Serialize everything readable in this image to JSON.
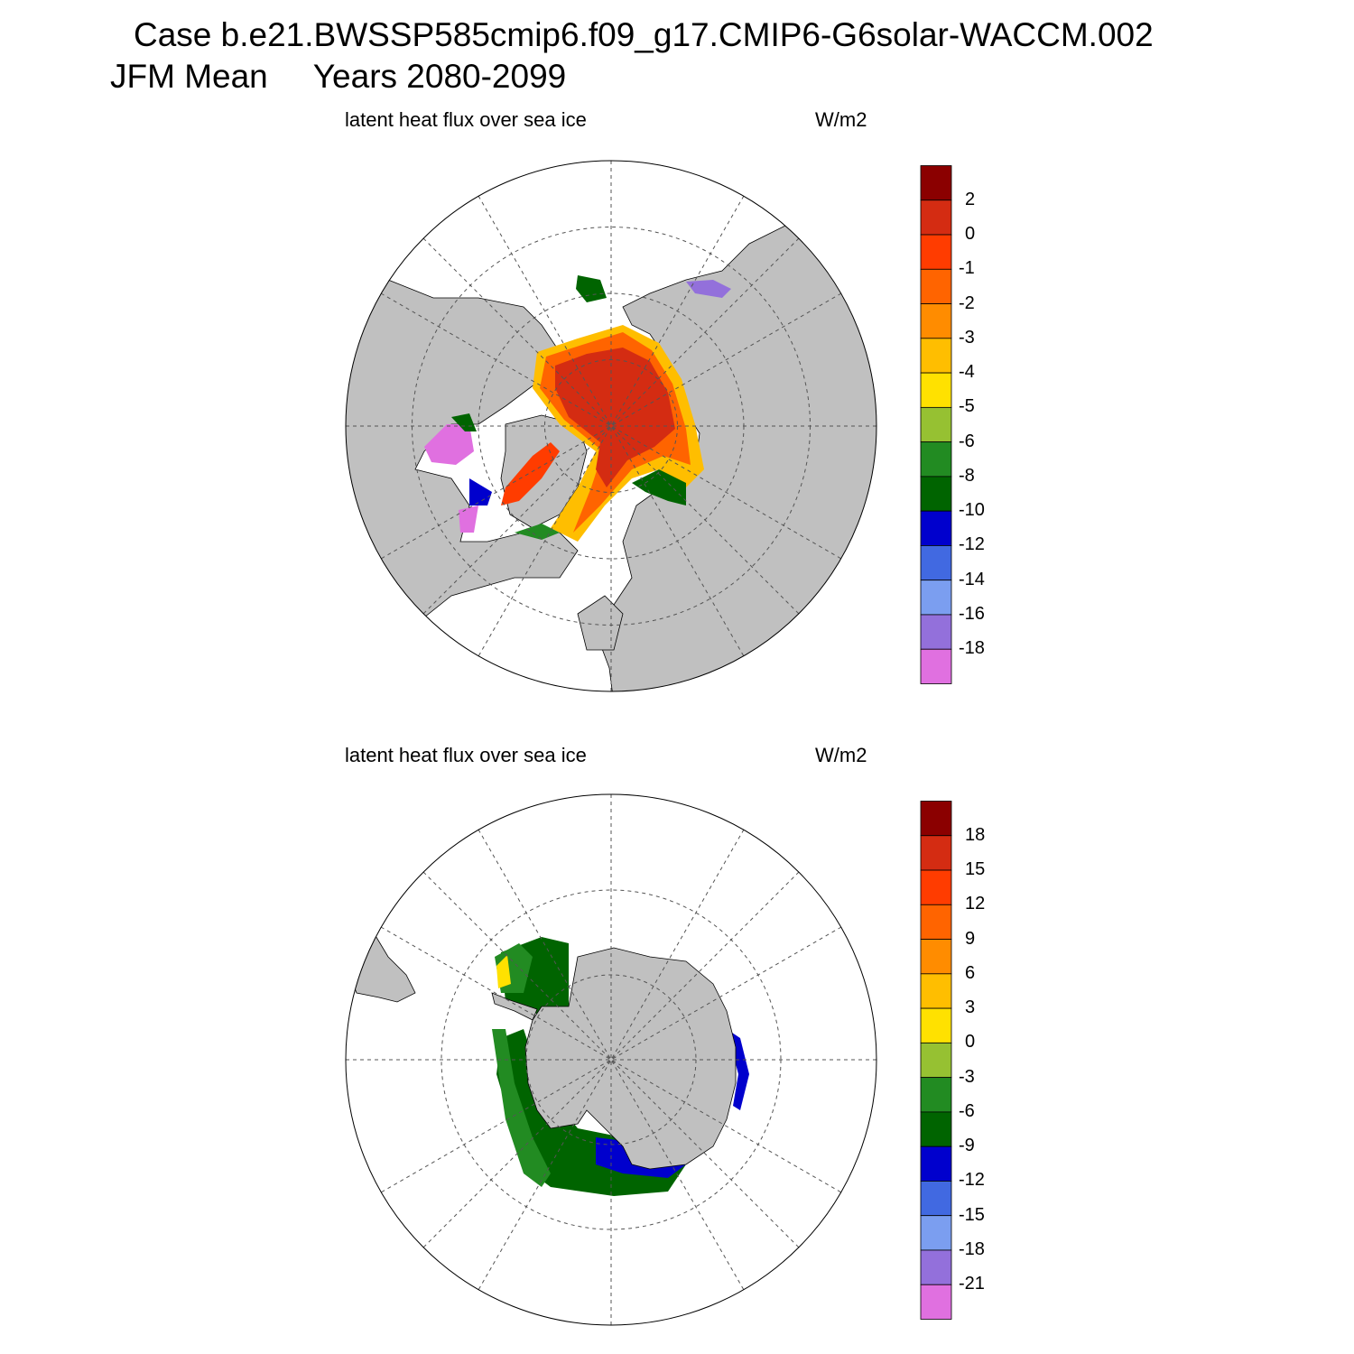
{
  "header": {
    "case_title": "Case b.e21.BWSSP585cmip6.f09_g17.CMIP6-G6solar-WACCM.002",
    "season": "JFM Mean",
    "years": "Years 2080-2099"
  },
  "panels": [
    {
      "hemisphere": "north",
      "title": "latent heat flux over sea ice",
      "units": "W/m2",
      "colorbar": {
        "colors": [
          "#8b0000",
          "#d42c12",
          "#ff3c00",
          "#ff6400",
          "#ff8c00",
          "#ffbe00",
          "#ffe100",
          "#96c132",
          "#228b22",
          "#006400",
          "#0000cd",
          "#4169e1",
          "#7b9ef0",
          "#9370db",
          "#e070e0"
        ],
        "labels": [
          "2",
          "0",
          "-1",
          "-2",
          "-3",
          "-4",
          "-5",
          "-6",
          "-8",
          "-10",
          "-12",
          "-14",
          "-16",
          "-18"
        ]
      }
    },
    {
      "hemisphere": "south",
      "title": "latent heat flux over sea ice",
      "units": "W/m2",
      "colorbar": {
        "colors": [
          "#8b0000",
          "#d42c12",
          "#ff3c00",
          "#ff6400",
          "#ff8c00",
          "#ffbe00",
          "#ffe100",
          "#96c132",
          "#228b22",
          "#006400",
          "#0000cd",
          "#4169e1",
          "#7b9ef0",
          "#9370db",
          "#e070e0"
        ],
        "labels": [
          "18",
          "15",
          "12",
          "9",
          "6",
          "3",
          "0",
          "-3",
          "-6",
          "-9",
          "-12",
          "-15",
          "-18",
          "-21"
        ]
      }
    }
  ]
}
